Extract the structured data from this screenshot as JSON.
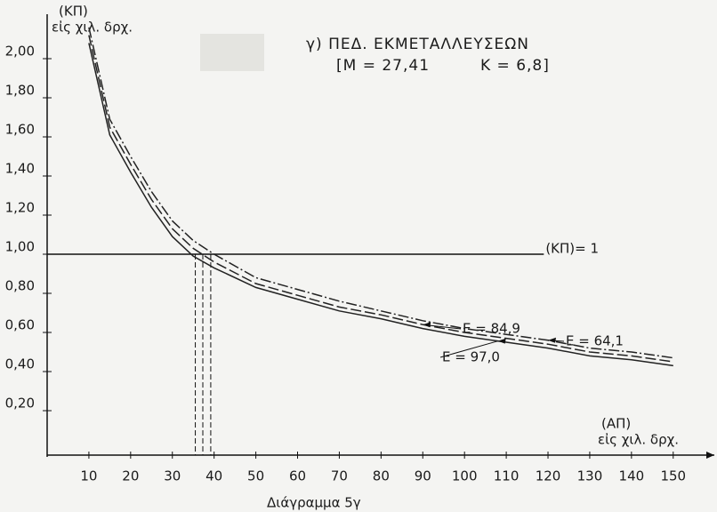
{
  "chart_data": {
    "type": "line",
    "title": "γ) ΠΕΔ. ΕΚΜΕΤΑΛΛΕΥΣΕΩΝ",
    "subtitle_left": "[Μ = 27,41",
    "subtitle_right": "Κ = 6,8]",
    "y_label": "(ΚΠ)",
    "y_unit": "εἰς χιλ. δρχ.",
    "x_label": "(ΑΠ)",
    "x_unit": "εἰς χιλ. δρχ.",
    "caption": "Διάγραμμα 5γ",
    "x": [
      10,
      15,
      20,
      25,
      30,
      35,
      40,
      50,
      60,
      70,
      80,
      90,
      100,
      110,
      120,
      130,
      140,
      150
    ],
    "series": [
      {
        "name": "Ε = 84,9",
        "color": "#222222",
        "dash": "dashed",
        "values": [
          2.12,
          1.65,
          1.46,
          1.28,
          1.13,
          1.03,
          0.96,
          0.85,
          0.79,
          0.73,
          0.69,
          0.64,
          0.6,
          0.57,
          0.54,
          0.5,
          0.48,
          0.45
        ]
      },
      {
        "name": "Ε = 64,1",
        "color": "#222222",
        "dash": "dashdot",
        "values": [
          2.16,
          1.69,
          1.5,
          1.32,
          1.17,
          1.07,
          1.0,
          0.88,
          0.82,
          0.76,
          0.71,
          0.66,
          0.62,
          0.59,
          0.56,
          0.52,
          0.5,
          0.47
        ]
      },
      {
        "name": "Ε = 97,0",
        "color": "#222222",
        "dash": "solid",
        "values": [
          2.08,
          1.61,
          1.42,
          1.24,
          1.09,
          0.99,
          0.93,
          0.83,
          0.77,
          0.71,
          0.67,
          0.62,
          0.58,
          0.55,
          0.52,
          0.48,
          0.46,
          0.43
        ]
      }
    ],
    "reference_line": {
      "y": 1,
      "x_end": 119,
      "label": "(ΚΠ)= 1"
    },
    "drop_lines_x": [
      35.5,
      37.3,
      39.2
    ],
    "xlim": [
      0,
      159
    ],
    "ylim": [
      0,
      2.2
    ],
    "xticks": [
      10,
      20,
      30,
      40,
      50,
      60,
      70,
      80,
      90,
      100,
      110,
      120,
      130,
      140,
      150
    ],
    "yticks": [
      {
        "value": 0.2,
        "label": "0,20"
      },
      {
        "value": 0.4,
        "label": "0,40"
      },
      {
        "value": 0.6,
        "label": "0,60"
      },
      {
        "value": 0.8,
        "label": "0,80"
      },
      {
        "value": 1.0,
        "label": "1,00"
      },
      {
        "value": 1.2,
        "label": "1,20"
      },
      {
        "value": 1.4,
        "label": "1,40"
      },
      {
        "value": 1.6,
        "label": "1,60"
      },
      {
        "value": 1.8,
        "label": "1,80"
      },
      {
        "value": 2.0,
        "label": "2,00"
      }
    ],
    "grid": false
  }
}
